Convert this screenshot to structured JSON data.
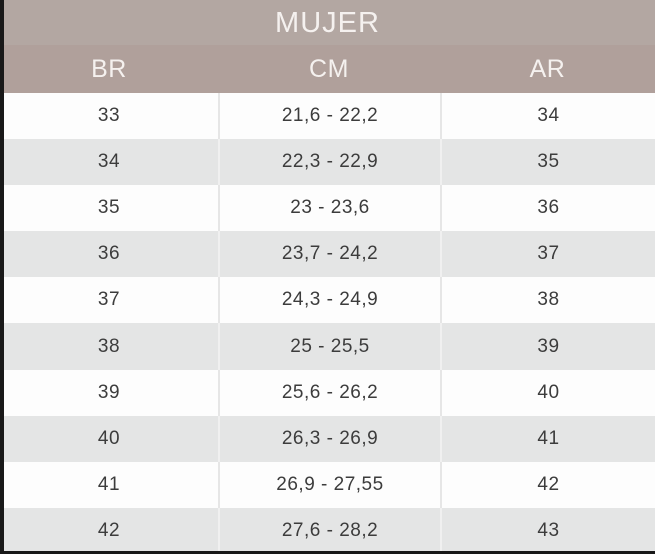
{
  "chart_data": {
    "type": "table",
    "title": "MUJER",
    "columns": [
      "BR",
      "CM",
      "AR"
    ],
    "rows": [
      [
        "33",
        "21,6 - 22,2",
        "34"
      ],
      [
        "34",
        "22,3 - 22,9",
        "35"
      ],
      [
        "35",
        "23 - 23,6",
        "36"
      ],
      [
        "36",
        "23,7 - 24,2",
        "37"
      ],
      [
        "37",
        "24,3 - 24,9",
        "38"
      ],
      [
        "38",
        "25 - 25,5",
        "39"
      ],
      [
        "39",
        "25,6 - 26,2",
        "40"
      ],
      [
        "40",
        "26,3 - 26,9",
        "41"
      ],
      [
        "41",
        "26,9 - 27,55",
        "42"
      ],
      [
        "42",
        "27,6 - 28,2",
        "43"
      ]
    ]
  },
  "colors": {
    "title_band": "#b3a7a2",
    "header_band": "#b0a09b",
    "row_light": "#fdfdfd",
    "row_shaded": "#e4e5e5",
    "cell_text": "#3c3c3c",
    "header_text": "#f5f1ef",
    "frame_edge": "#191919",
    "divider": "#e6e6e6"
  }
}
